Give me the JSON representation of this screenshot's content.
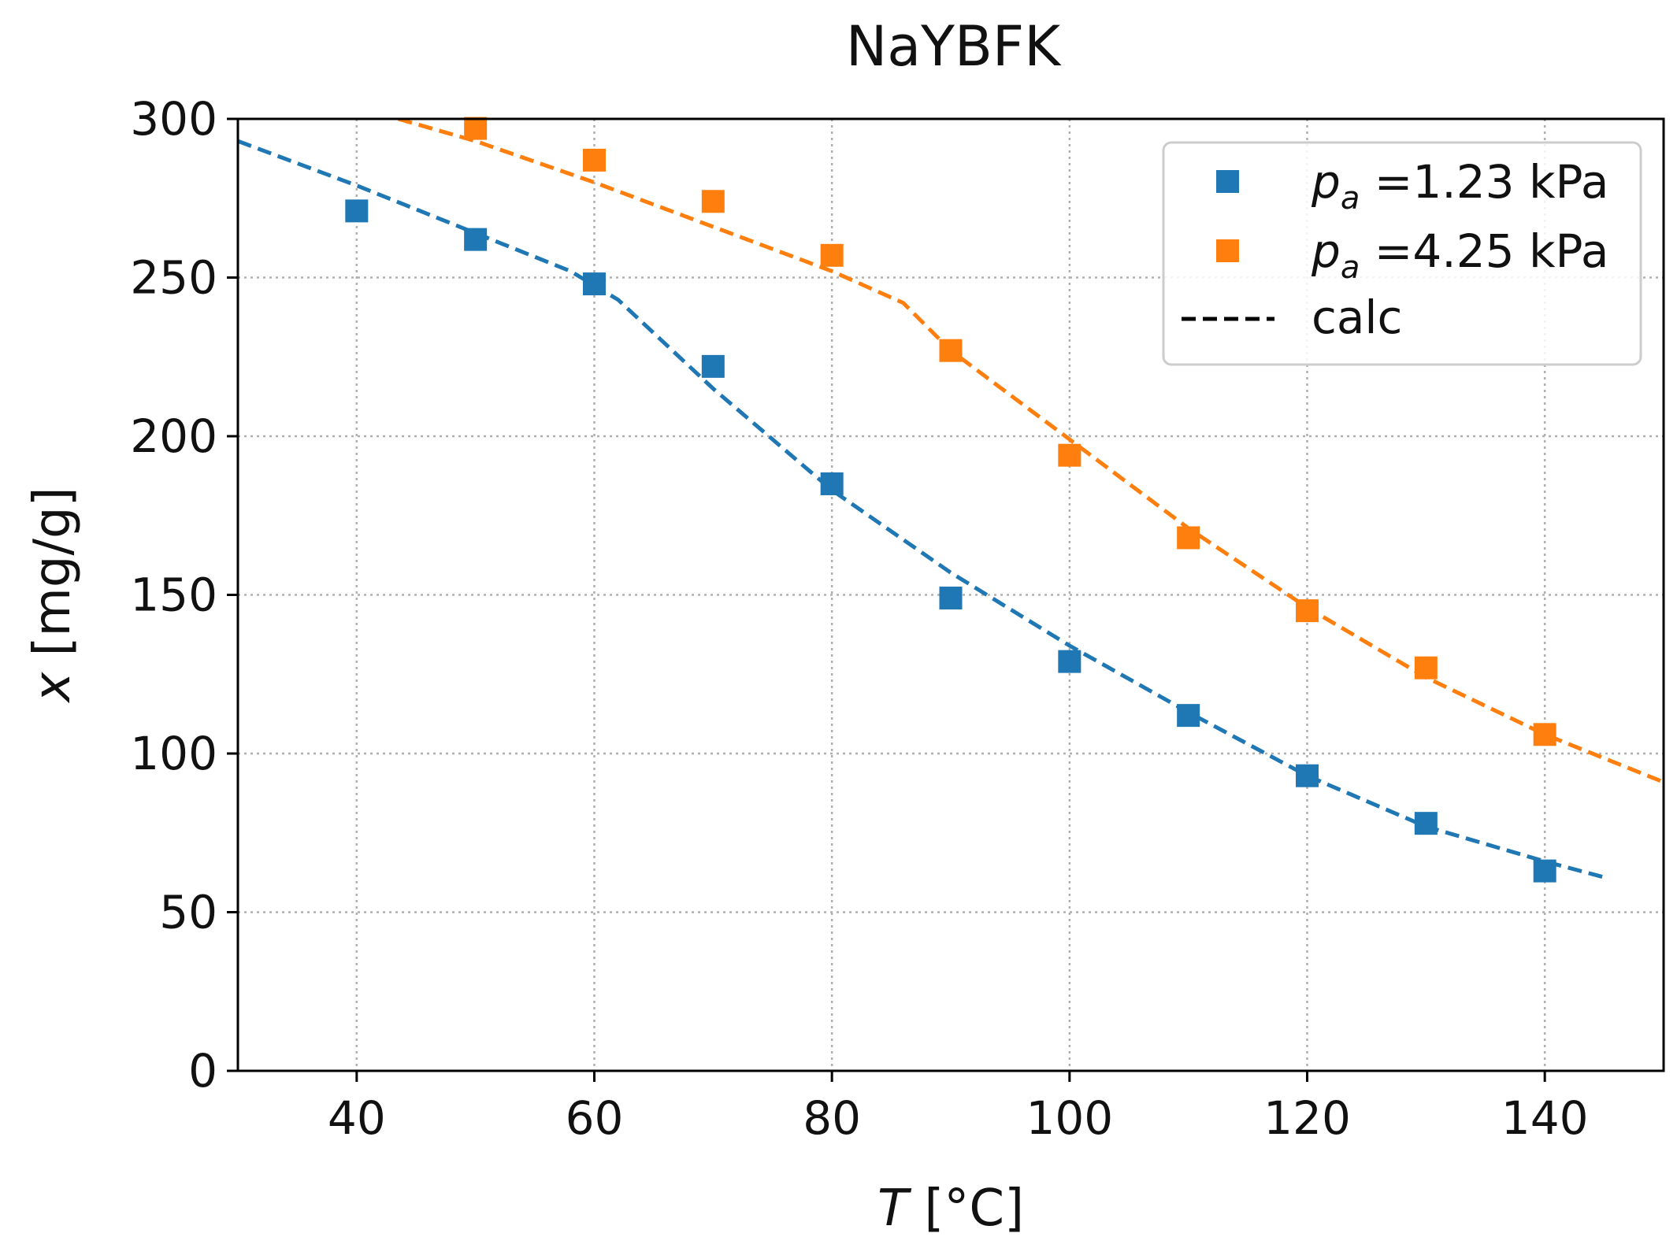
{
  "chart_data": {
    "type": "scatter",
    "title": "NaYBFK",
    "xlabel_symbol": "T",
    "xlabel_unit": " [°C]",
    "ylabel_symbol": "x",
    "ylabel_unit": " [mg/g]",
    "xlim": [
      30,
      150
    ],
    "ylim": [
      0,
      300
    ],
    "xticks": [
      40,
      60,
      80,
      100,
      120,
      140
    ],
    "yticks": [
      0,
      50,
      100,
      150,
      200,
      250,
      300
    ],
    "grid": true,
    "legend_position": "top-right",
    "series": [
      {
        "name": "p_a =1.23 kPa",
        "legend_symbol": "p",
        "legend_subscript": "a",
        "legend_value": " =1.23 kPa",
        "color": "#1f77b4",
        "marker": "square",
        "points": [
          {
            "x": 40,
            "y": 271
          },
          {
            "x": 50,
            "y": 262
          },
          {
            "x": 60,
            "y": 248
          },
          {
            "x": 70,
            "y": 222
          },
          {
            "x": 80,
            "y": 185
          },
          {
            "x": 90,
            "y": 149
          },
          {
            "x": 100,
            "y": 129
          },
          {
            "x": 110,
            "y": 112
          },
          {
            "x": 120,
            "y": 93
          },
          {
            "x": 130,
            "y": 78
          },
          {
            "x": 140,
            "y": 63
          }
        ],
        "calc": [
          {
            "x": 30,
            "y": 293
          },
          {
            "x": 40,
            "y": 279
          },
          {
            "x": 50,
            "y": 264
          },
          {
            "x": 58,
            "y": 252
          },
          {
            "x": 62,
            "y": 243
          },
          {
            "x": 70,
            "y": 215
          },
          {
            "x": 80,
            "y": 183
          },
          {
            "x": 90,
            "y": 157
          },
          {
            "x": 100,
            "y": 134
          },
          {
            "x": 110,
            "y": 113
          },
          {
            "x": 120,
            "y": 93
          },
          {
            "x": 130,
            "y": 77
          },
          {
            "x": 140,
            "y": 66
          },
          {
            "x": 145,
            "y": 61
          }
        ]
      },
      {
        "name": "p_a =4.25 kPa",
        "legend_symbol": "p",
        "legend_subscript": "a",
        "legend_value": " =4.25 kPa",
        "color": "#ff7f0e",
        "marker": "square",
        "points": [
          {
            "x": 50,
            "y": 297
          },
          {
            "x": 60,
            "y": 287
          },
          {
            "x": 70,
            "y": 274
          },
          {
            "x": 80,
            "y": 257
          },
          {
            "x": 90,
            "y": 227
          },
          {
            "x": 100,
            "y": 194
          },
          {
            "x": 110,
            "y": 168
          },
          {
            "x": 120,
            "y": 145
          },
          {
            "x": 130,
            "y": 127
          },
          {
            "x": 140,
            "y": 106
          }
        ],
        "calc": [
          {
            "x": 43.5,
            "y": 300
          },
          {
            "x": 50,
            "y": 293
          },
          {
            "x": 60,
            "y": 280
          },
          {
            "x": 70,
            "y": 266
          },
          {
            "x": 80,
            "y": 252
          },
          {
            "x": 86,
            "y": 242
          },
          {
            "x": 90,
            "y": 227
          },
          {
            "x": 100,
            "y": 199
          },
          {
            "x": 110,
            "y": 171
          },
          {
            "x": 120,
            "y": 146
          },
          {
            "x": 130,
            "y": 124
          },
          {
            "x": 140,
            "y": 106
          },
          {
            "x": 150,
            "y": 91
          }
        ]
      }
    ],
    "calc_legend_label": "calc",
    "calc_legend_color": "#000000",
    "grid_color": "#b0b0b0",
    "axis_color": "#000000"
  }
}
